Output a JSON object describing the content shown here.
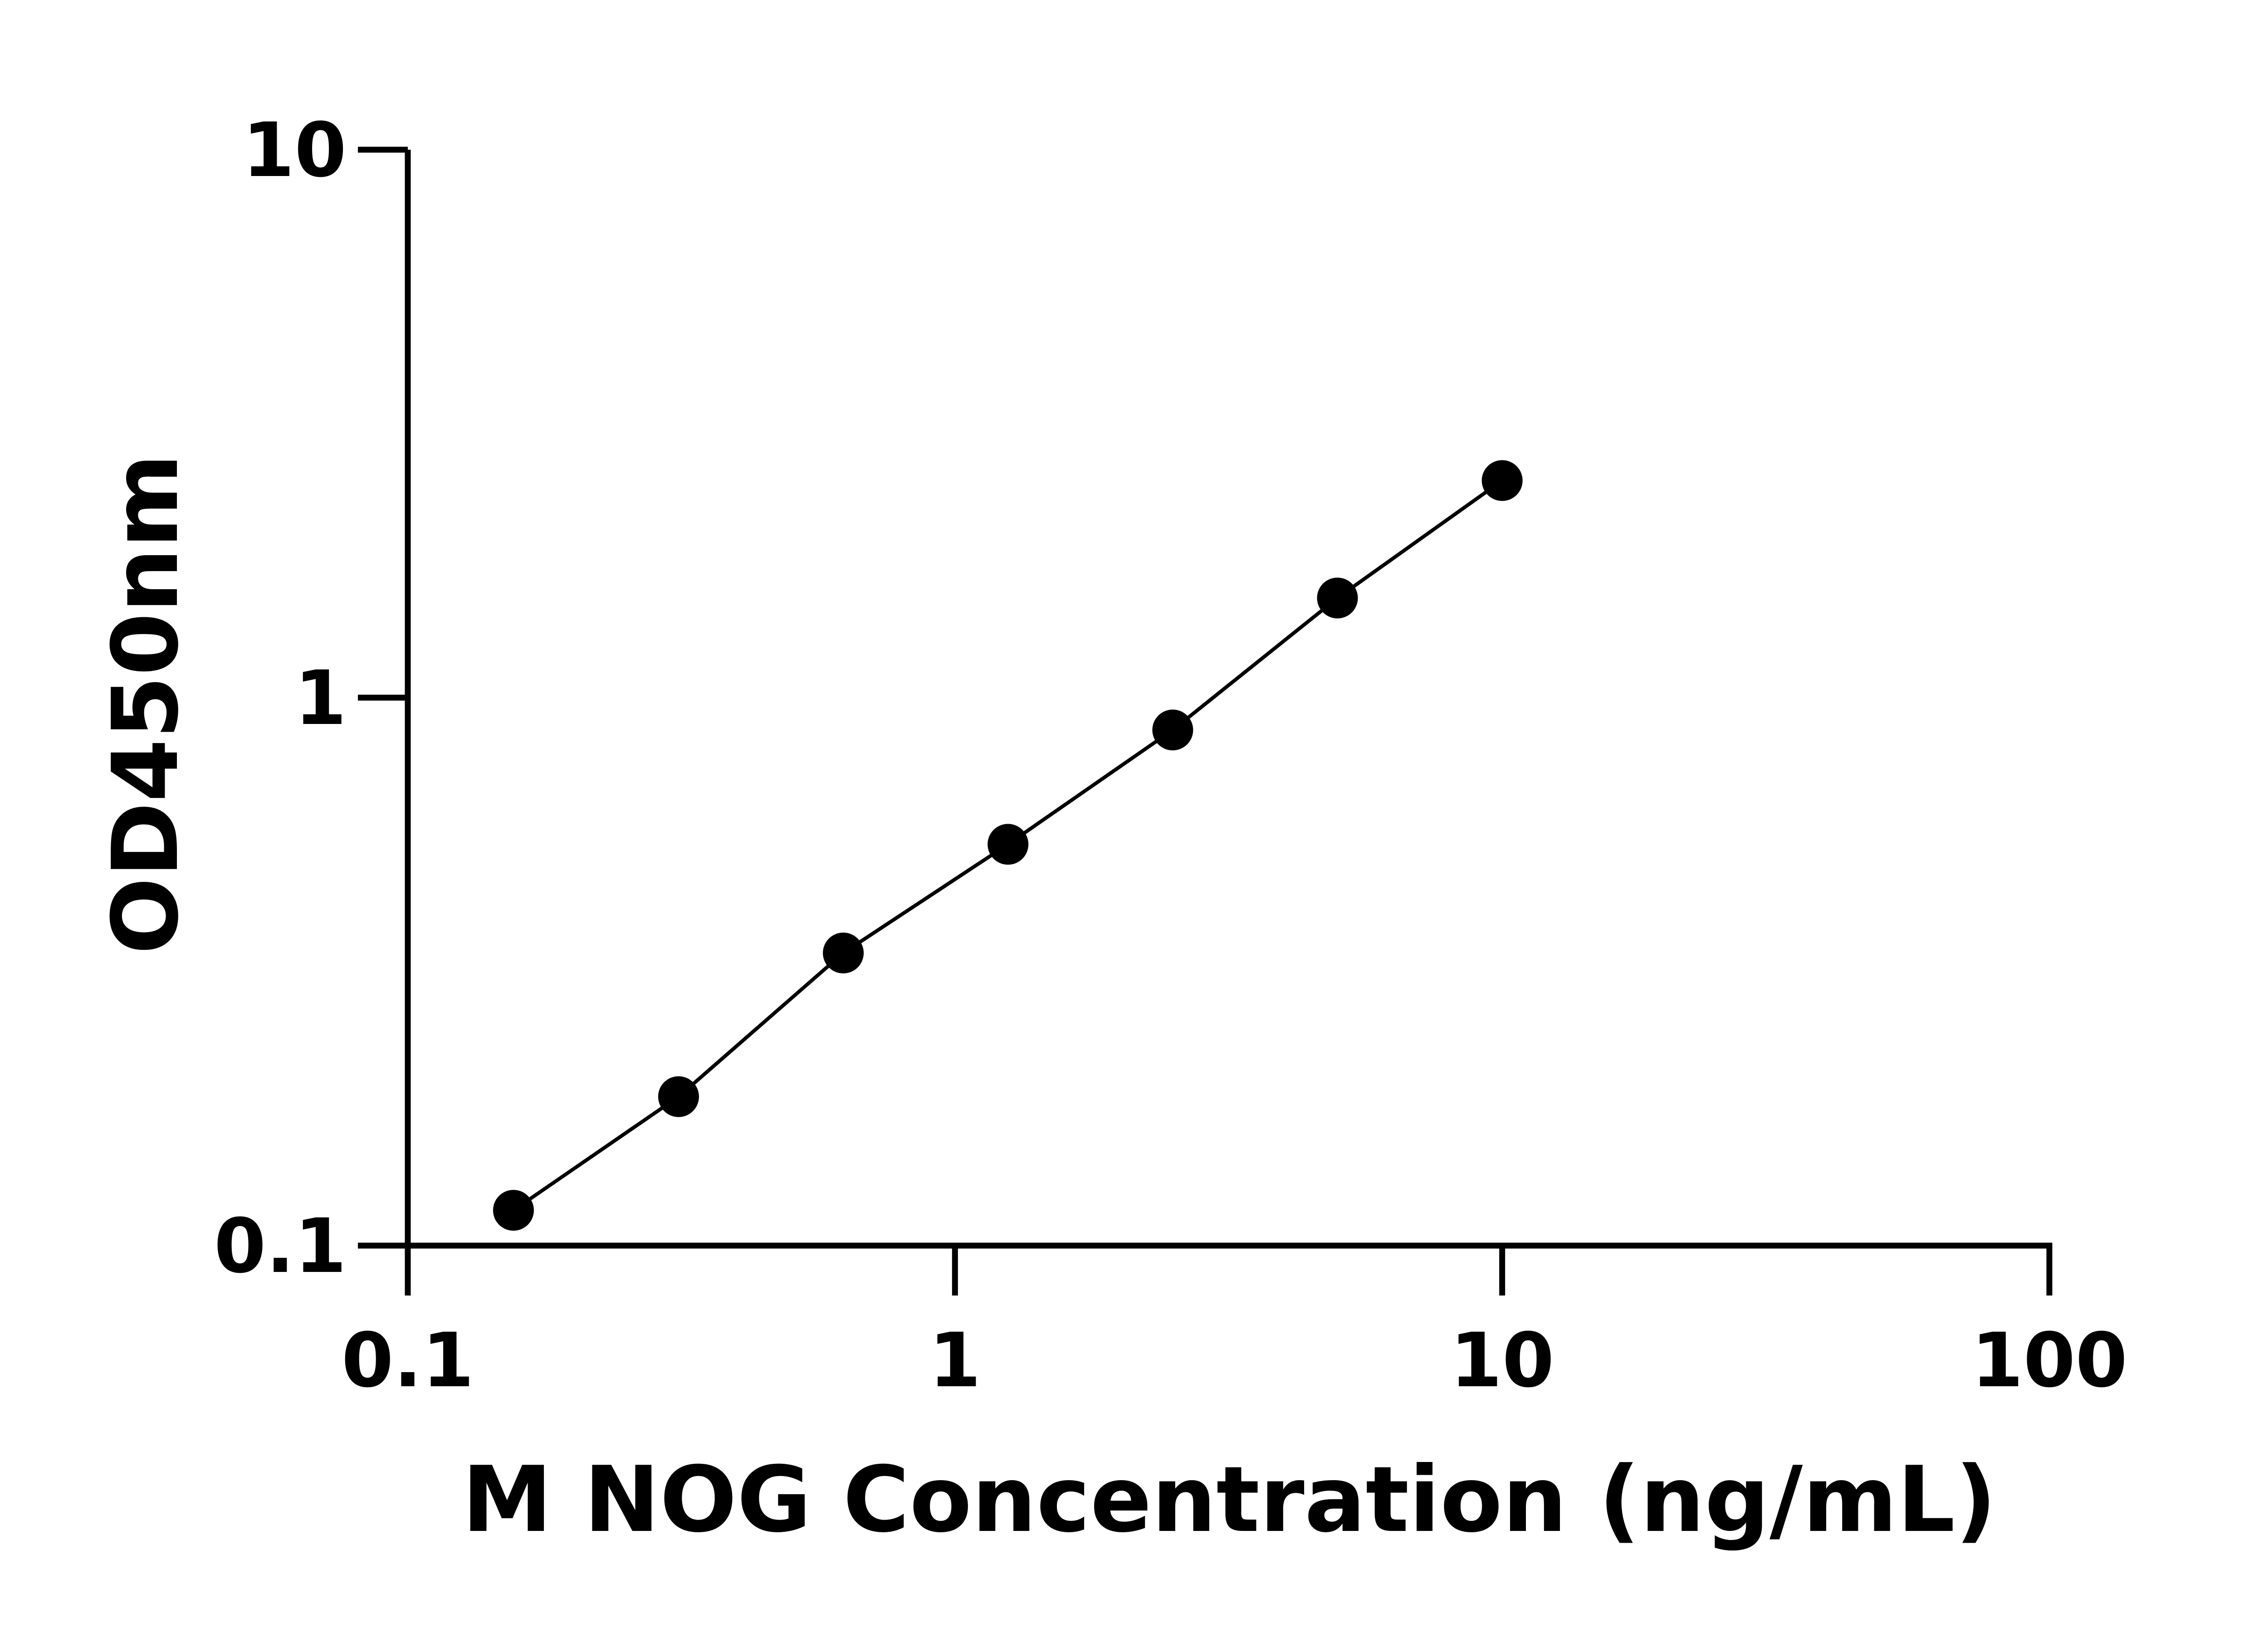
{
  "chart_data": {
    "type": "line",
    "title": "",
    "xlabel": "M NOG Concentration (ng/mL)",
    "ylabel": "OD450nm",
    "x_scale": "log",
    "y_scale": "log",
    "xlim": [
      0.1,
      100
    ],
    "ylim": [
      0.1,
      10
    ],
    "x_ticks": [
      "0.1",
      "1",
      "10",
      "100"
    ],
    "y_ticks": [
      "0.1",
      "1",
      "10"
    ],
    "grid": false,
    "legend": "none",
    "marker": "filled-circle",
    "color": "#000000",
    "series": [
      {
        "x": [
          0.156,
          0.3125,
          0.625,
          1.25,
          2.5,
          5,
          10
        ],
        "y": [
          0.116,
          0.187,
          0.342,
          0.54,
          0.873,
          1.52,
          2.49
        ]
      }
    ]
  }
}
